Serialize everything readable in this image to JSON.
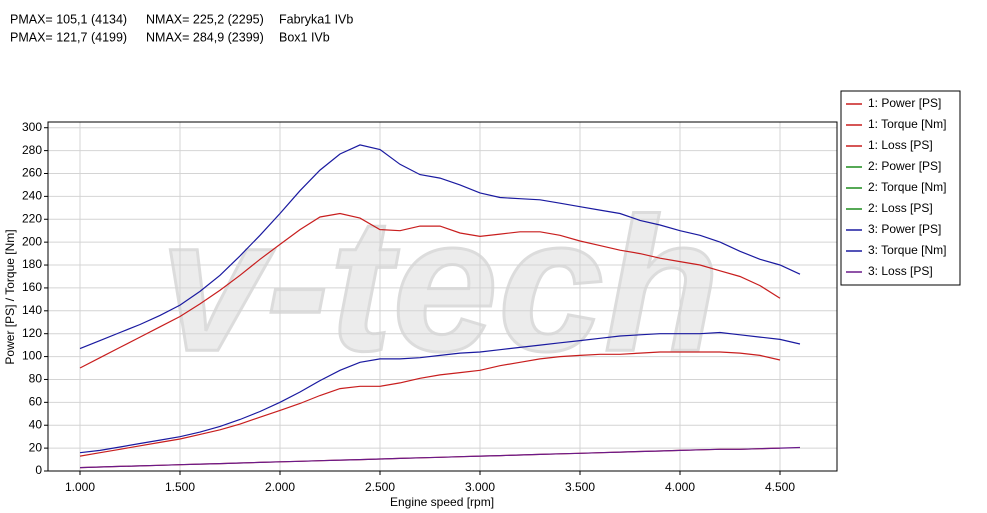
{
  "chart_data": {
    "type": "line",
    "annotations": [
      [
        "PMAX= 105,1 (4134)",
        "NMAX= 225,2 (2295)",
        "Fabryka1 IVb"
      ],
      [
        "PMAX= 121,7 (4199)",
        "NMAX= 284,9 (2399)",
        "Box1 IVb"
      ]
    ],
    "watermark": "v-tech",
    "xlabel": "Engine speed [rpm]",
    "ylabel": "Power [PS] / Torque [Nm]",
    "xlim": [
      840,
      4785
    ],
    "ylim": [
      0,
      305
    ],
    "xticks": [
      {
        "value": 1000,
        "label": "1.000"
      },
      {
        "value": 1500,
        "label": "1.500"
      },
      {
        "value": 2000,
        "label": "2.000"
      },
      {
        "value": 2500,
        "label": "2.500"
      },
      {
        "value": 3000,
        "label": "3.000"
      },
      {
        "value": 3500,
        "label": "3.500"
      },
      {
        "value": 4000,
        "label": "4.000"
      },
      {
        "value": 4500,
        "label": "4.500"
      }
    ],
    "yticks": [
      0,
      20,
      40,
      60,
      80,
      100,
      120,
      140,
      160,
      180,
      200,
      220,
      240,
      260,
      280,
      300
    ],
    "grid": true,
    "x": [
      1000,
      1100,
      1200,
      1300,
      1400,
      1500,
      1600,
      1700,
      1800,
      1900,
      2000,
      2100,
      2200,
      2300,
      2400,
      2500,
      2600,
      2700,
      2800,
      2900,
      3000,
      3100,
      3200,
      3300,
      3400,
      3500,
      3600,
      3700,
      3800,
      3900,
      4000,
      4100,
      4200,
      4300,
      4400,
      4500,
      4600
    ],
    "series": [
      {
        "name": "1: Power [PS]",
        "color": "#c81e1e",
        "values": [
          13,
          16,
          19,
          22,
          25,
          28,
          32,
          36,
          41,
          47,
          53,
          59,
          66,
          72,
          74,
          74,
          77,
          81,
          84,
          86,
          88,
          92,
          95,
          98,
          100,
          101,
          102,
          102,
          103,
          104,
          104,
          104,
          104,
          103,
          101,
          97,
          null
        ]
      },
      {
        "name": "1: Torque [Nm]",
        "color": "#c81e1e",
        "values": [
          90,
          99,
          108,
          117,
          126,
          135,
          146,
          158,
          171,
          185,
          198,
          211,
          222,
          225,
          221,
          211,
          210,
          214,
          214,
          208,
          205,
          207,
          209,
          209,
          206,
          201,
          197,
          193,
          190,
          186,
          183,
          180,
          175,
          170,
          162,
          151,
          null
        ]
      },
      {
        "name": "1: Loss [PS]",
        "color": "#c81e1e",
        "values": [
          3,
          3.5,
          4,
          4.5,
          5,
          5.5,
          6,
          6.5,
          7,
          7.5,
          8,
          8.5,
          9,
          9.5,
          10,
          10.5,
          11,
          11.5,
          12,
          12.5,
          13,
          13.5,
          14,
          14.5,
          15,
          15.5,
          16,
          16.5,
          17,
          17.5,
          18,
          18.5,
          19,
          19,
          19.5,
          20,
          null
        ]
      },
      {
        "name": "2: Power [PS]",
        "color": "#1e8c1e",
        "values": [
          null,
          null,
          null,
          null,
          null,
          null,
          null,
          null,
          null,
          null,
          null,
          null,
          null,
          null,
          null,
          null,
          null,
          null,
          null,
          null,
          null,
          null,
          null,
          null,
          null,
          null,
          null,
          null,
          null,
          null,
          null,
          null,
          null,
          null,
          null,
          null,
          null
        ]
      },
      {
        "name": "2: Torque [Nm]",
        "color": "#1e8c1e",
        "values": [
          null,
          null,
          null,
          null,
          null,
          null,
          null,
          null,
          null,
          null,
          null,
          null,
          null,
          null,
          null,
          null,
          null,
          null,
          null,
          null,
          null,
          null,
          null,
          null,
          null,
          null,
          null,
          null,
          null,
          null,
          null,
          null,
          null,
          null,
          null,
          null,
          null
        ]
      },
      {
        "name": "2: Loss [PS]",
        "color": "#1e8c1e",
        "values": [
          null,
          null,
          null,
          null,
          null,
          null,
          null,
          null,
          null,
          null,
          null,
          null,
          null,
          null,
          null,
          null,
          null,
          null,
          null,
          null,
          null,
          null,
          null,
          null,
          null,
          null,
          null,
          null,
          null,
          null,
          null,
          null,
          null,
          null,
          null,
          null,
          null
        ]
      },
      {
        "name": "3: Power [PS]",
        "color": "#1a1aa0",
        "values": [
          16,
          18,
          21,
          24,
          27,
          30,
          34,
          39,
          45,
          52,
          60,
          69,
          79,
          88,
          95,
          98,
          98,
          99,
          101,
          103,
          104,
          106,
          108,
          110,
          112,
          114,
          116,
          118,
          119,
          120,
          120,
          120,
          121,
          119,
          117,
          115,
          111
        ]
      },
      {
        "name": "3: Torque [Nm]",
        "color": "#1a1aa0",
        "values": [
          107,
          114,
          121,
          128,
          136,
          145,
          157,
          171,
          188,
          206,
          225,
          245,
          263,
          277,
          285,
          281,
          268,
          259,
          256,
          250,
          243,
          239,
          238,
          237,
          234,
          231,
          228,
          225,
          219,
          215,
          210,
          206,
          200,
          192,
          185,
          180,
          172
        ]
      },
      {
        "name": "3: Loss [PS]",
        "color": "#6a1a8a",
        "values": [
          3,
          3.5,
          4,
          4.5,
          5,
          5.5,
          6,
          6.5,
          7,
          7.5,
          8,
          8.5,
          9,
          9.5,
          10,
          10.5,
          11,
          11.5,
          12,
          12.5,
          13,
          13.5,
          14,
          14.5,
          15,
          15.5,
          16,
          16.5,
          17,
          17.5,
          18,
          18.5,
          19,
          19,
          19.5,
          20,
          20.5
        ]
      }
    ]
  }
}
